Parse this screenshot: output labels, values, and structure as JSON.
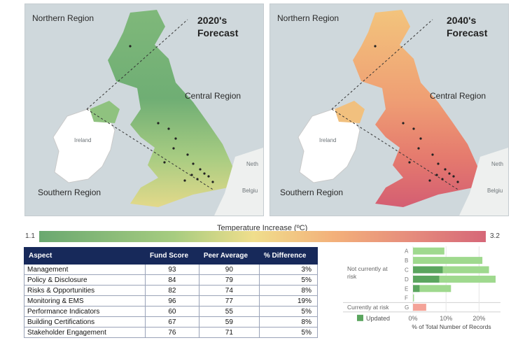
{
  "maps": {
    "left": {
      "title_line1": "2020's",
      "title_line2": "Forecast",
      "north": "Northern Region",
      "central": "Central Region",
      "south": "Southern Region",
      "ireland": "Ireland",
      "minor1": "Neth",
      "minor2": "Belgiu"
    },
    "right": {
      "title_line1": "2040's",
      "title_line2": "Forecast",
      "north": "Northern Region",
      "central": "Central Region",
      "south": "Southern Region",
      "ireland": "Ireland",
      "minor1": "Neth",
      "minor2": "Belgiu"
    }
  },
  "scale": {
    "title": "Temperature Increase (ºC)",
    "min": "1.1",
    "max": "3.2",
    "colors": [
      "#6aa870",
      "#f0de8c",
      "#d66778"
    ]
  },
  "table": {
    "headers": [
      "Aspect",
      "Fund Score",
      "Peer Average",
      "% Difference"
    ],
    "rows": [
      [
        "Management",
        "93",
        "90",
        "3%"
      ],
      [
        "Policy & Disclosure",
        "84",
        "79",
        "5%"
      ],
      [
        "Risks & Opportunities",
        "82",
        "74",
        "8%"
      ],
      [
        "Monitoring & EMS",
        "96",
        "77",
        "19%"
      ],
      [
        "Performance Indicators",
        "60",
        "55",
        "5%"
      ],
      [
        "Building Certifications",
        "67",
        "59",
        "8%"
      ],
      [
        "Stakeholder Engagement",
        "76",
        "71",
        "5%"
      ]
    ]
  },
  "chart_data": {
    "type": "bar",
    "orientation": "horizontal",
    "categories": [
      "A",
      "B",
      "C",
      "D",
      "E",
      "F",
      "G"
    ],
    "groups": [
      {
        "label": "Not currently at risk",
        "categories": [
          "A",
          "B",
          "C",
          "D",
          "E",
          "F"
        ]
      },
      {
        "label": "Currently at risk",
        "categories": [
          "G"
        ]
      }
    ],
    "series": [
      {
        "name": "Updated",
        "color": "#5aa55e",
        "values": [
          0,
          0,
          9,
          8,
          2,
          0,
          0
        ]
      },
      {
        "color": "#9fd98e",
        "values": [
          9.5,
          21,
          14,
          17,
          9.5,
          0.3,
          0
        ]
      },
      {
        "color": "#f4a398",
        "values": [
          0,
          0,
          0,
          0,
          0,
          0,
          4
        ]
      }
    ],
    "xticks": [
      "0%",
      "10%",
      "20%"
    ],
    "xlim": [
      0,
      25
    ],
    "xlabel": "% of Total Number of Records",
    "legend": "bottom-left",
    "grid": true
  }
}
